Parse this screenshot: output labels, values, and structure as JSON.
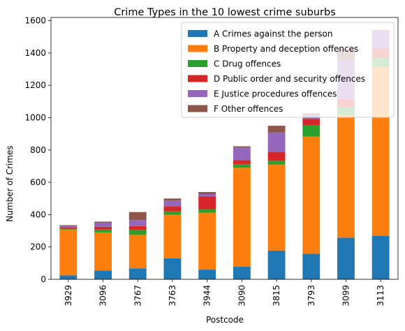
{
  "chart_data": {
    "type": "bar",
    "stacked": true,
    "title": "Crime Types in the 10 lowest crime suburbs",
    "xlabel": "Postcode",
    "ylabel": "Number of Crimes",
    "ylim": [
      0,
      1600
    ],
    "yticks": [
      0,
      200,
      400,
      600,
      800,
      1000,
      1200,
      1400,
      1600
    ],
    "grid": false,
    "legend_position": "top-right",
    "categories": [
      "3929",
      "3096",
      "3767",
      "3763",
      "3944",
      "3090",
      "3815",
      "3793",
      "3099",
      "3113"
    ],
    "series": [
      {
        "name": "A Crimes against the person",
        "color": "#1f77b4",
        "values": [
          25,
          55,
          68,
          130,
          60,
          78,
          178,
          158,
          258,
          268
        ]
      },
      {
        "name": "B Property and deception offences",
        "color": "#ff7f0e",
        "values": [
          283,
          235,
          207,
          270,
          352,
          612,
          532,
          725,
          758,
          1045
        ]
      },
      {
        "name": "C Drug offences",
        "color": "#2ca02c",
        "values": [
          5,
          18,
          32,
          20,
          22,
          22,
          23,
          72,
          50,
          58
        ]
      },
      {
        "name": "D Public order and security offences",
        "color": "#d62728",
        "values": [
          7,
          17,
          22,
          32,
          78,
          25,
          55,
          38,
          50,
          58
        ]
      },
      {
        "name": "E Justice procedures offences",
        "color": "#9467bd",
        "values": [
          10,
          27,
          37,
          35,
          15,
          78,
          120,
          22,
          240,
          108
        ]
      },
      {
        "name": "F Other offences",
        "color": "#8c564b",
        "values": [
          5,
          5,
          50,
          13,
          13,
          8,
          42,
          13,
          70,
          6
        ]
      }
    ]
  }
}
